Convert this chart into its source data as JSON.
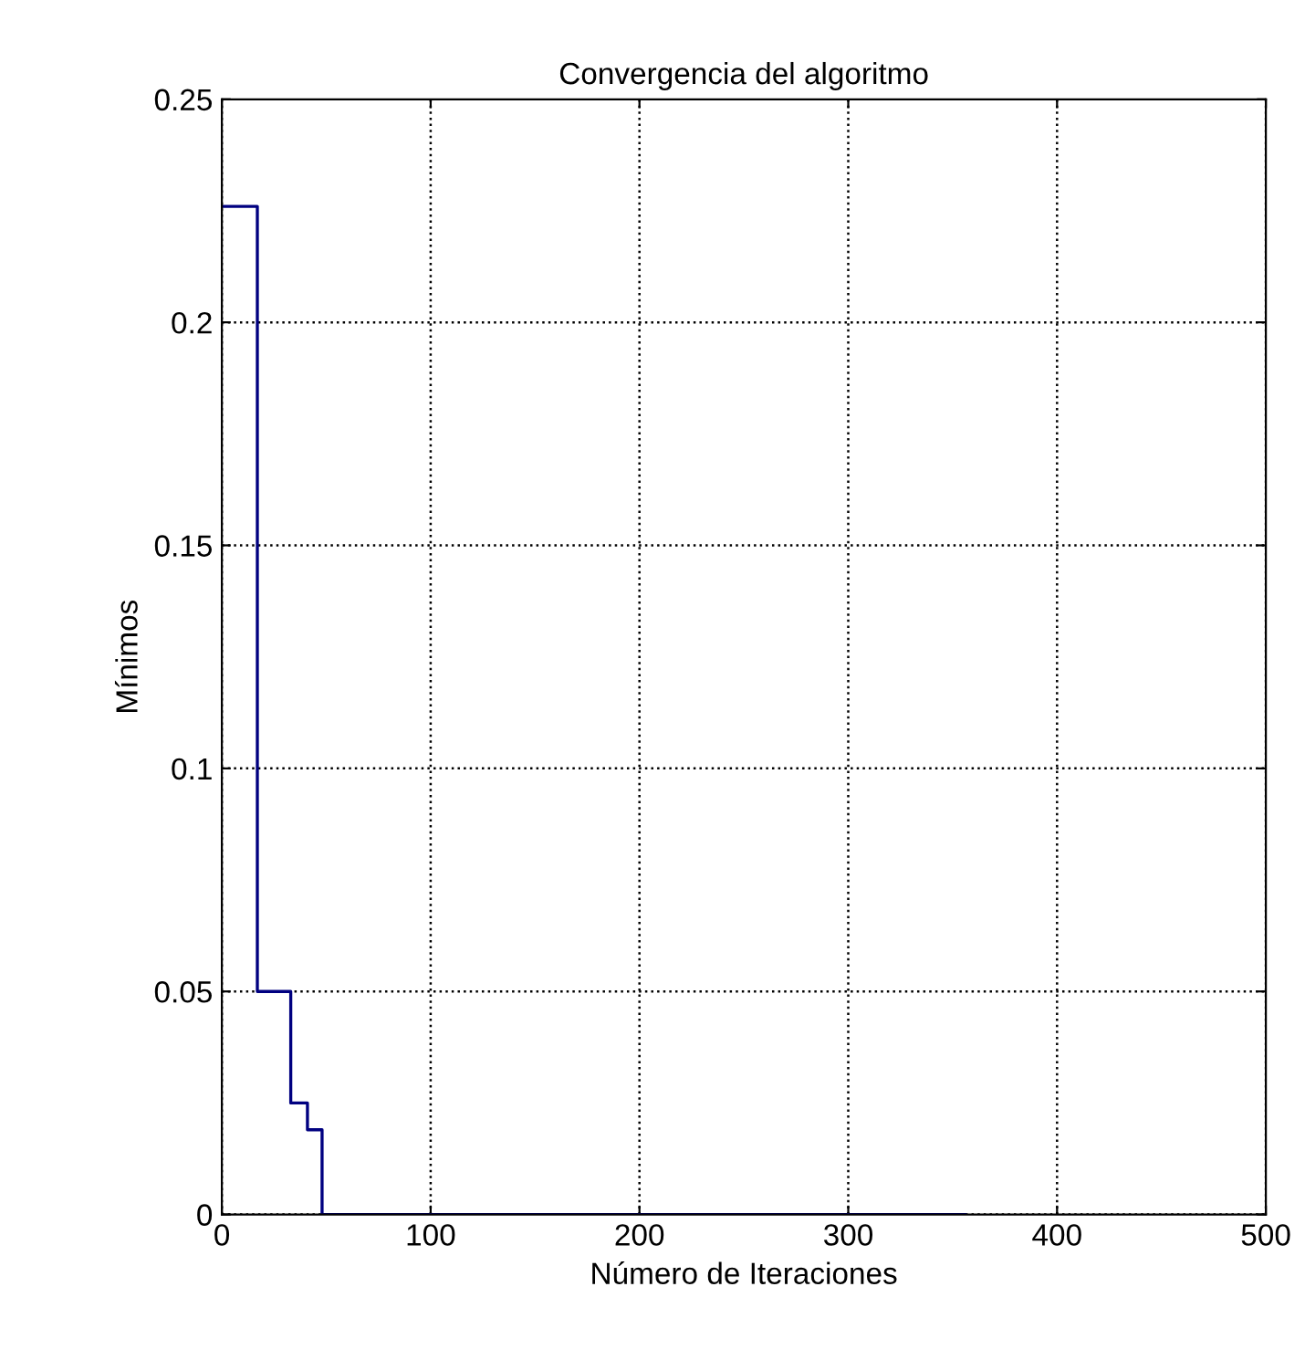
{
  "chart_data": {
    "type": "step",
    "title": "Convergencia del algoritmo",
    "xlabel": "Número de Iteraciones",
    "ylabel": "Mínimos",
    "x": [
      1,
      17,
      33,
      41,
      48,
      356
    ],
    "series": [
      {
        "color": "#000080",
        "values": [
          0.226,
          0.05,
          0.025,
          0.019,
          0,
          0
        ]
      }
    ],
    "xlim": [
      0,
      500
    ],
    "xticks": [
      0,
      100,
      200,
      300,
      400,
      500
    ],
    "ylim": [
      0,
      0.25
    ],
    "yticks": [
      0,
      0.05,
      0.1,
      0.15,
      0.2,
      0.25
    ],
    "grid": true,
    "line_style": "solid"
  }
}
